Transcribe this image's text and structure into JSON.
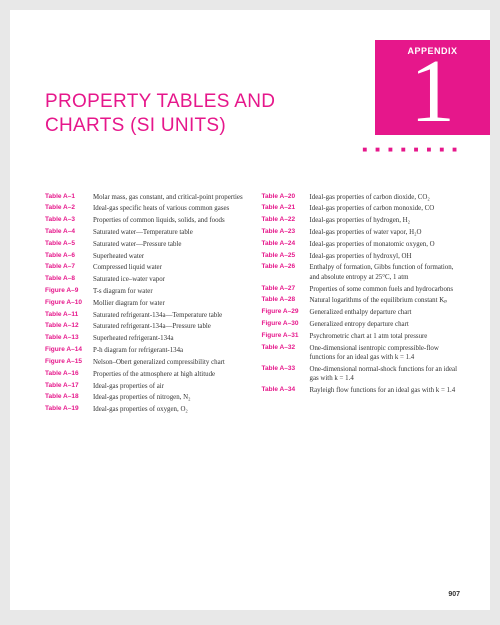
{
  "header": {
    "appendix_label": "APPENDIX",
    "appendix_number": "1",
    "dots": "■ ■ ■ ■ ■ ■ ■ ■"
  },
  "title": "PROPERTY TABLES AND CHARTS\n(SI UNITS)",
  "page_number": "907",
  "columns": [
    [
      {
        "ref": "Table A–1",
        "desc": "Molar mass, gas constant, and critical-point properties"
      },
      {
        "ref": "Table A–2",
        "desc": "Ideal-gas specific heats of various common gases"
      },
      {
        "ref": "Table A–3",
        "desc": "Properties of common liquids, solids, and foods"
      },
      {
        "ref": "Table A–4",
        "desc": "Saturated water—Temperature table"
      },
      {
        "ref": "Table A–5",
        "desc": "Saturated water—Pressure table"
      },
      {
        "ref": "Table A–6",
        "desc": "Superheated water"
      },
      {
        "ref": "Table A–7",
        "desc": "Compressed liquid water"
      },
      {
        "ref": "Table A–8",
        "desc": "Saturated ice–water vapor"
      },
      {
        "ref": "Figure A–9",
        "desc": "T-s diagram for water"
      },
      {
        "ref": "Figure A–10",
        "desc": "Mollier diagram for water"
      },
      {
        "ref": "Table A–11",
        "desc": "Saturated refrigerant-134a—Temperature table"
      },
      {
        "ref": "Table A–12",
        "desc": "Saturated refrigerant-134a—Pressure table"
      },
      {
        "ref": "Table A–13",
        "desc": "Superheated refrigerant-134a"
      },
      {
        "ref": "Figure A–14",
        "desc": "P-h diagram for refrigerant-134a"
      },
      {
        "ref": "Figure A–15",
        "desc": "Nelson–Obert generalized compressibility chart"
      },
      {
        "ref": "Table A–16",
        "desc": "Properties of the atmosphere at high altitude"
      },
      {
        "ref": "Table A–17",
        "desc": "Ideal-gas properties of air"
      },
      {
        "ref": "Table A–18",
        "desc": "Ideal-gas properties of nitrogen, N₂"
      },
      {
        "ref": "Table A–19",
        "desc": "Ideal-gas properties of oxygen, O₂"
      }
    ],
    [
      {
        "ref": "Table A–20",
        "desc": "Ideal-gas properties of carbon dioxide, CO₂"
      },
      {
        "ref": "Table A–21",
        "desc": "Ideal-gas properties of carbon monoxide, CO"
      },
      {
        "ref": "Table A–22",
        "desc": "Ideal-gas properties of hydrogen, H₂"
      },
      {
        "ref": "Table A–23",
        "desc": "Ideal-gas properties of water vapor, H₂O"
      },
      {
        "ref": "Table A–24",
        "desc": "Ideal-gas properties of monatomic oxygen, O"
      },
      {
        "ref": "Table A–25",
        "desc": "Ideal-gas properties of hydroxyl, OH"
      },
      {
        "ref": "Table A–26",
        "desc": "Enthalpy of formation, Gibbs function of formation, and absolute entropy at 25°C, 1 atm"
      },
      {
        "ref": "Table A–27",
        "desc": "Properties of some common fuels and hydrocarbons"
      },
      {
        "ref": "Table A–28",
        "desc": "Natural logarithms of the equilibrium constant Kₚ"
      },
      {
        "ref": "Figure A–29",
        "desc": "Generalized enthalpy departure chart"
      },
      {
        "ref": "Figure A–30",
        "desc": "Generalized entropy departure chart"
      },
      {
        "ref": "Figure A–31",
        "desc": "Psychrometric chart at 1 atm total pressure"
      },
      {
        "ref": "Table A–32",
        "desc": "One-dimensional isentropic compressible-flow functions for an ideal gas with k = 1.4"
      },
      {
        "ref": "Table A–33",
        "desc": "One-dimensional normal-shock functions for an ideal gas with k = 1.4"
      },
      {
        "ref": "Table A–34",
        "desc": "Rayleigh flow functions for an ideal gas with k = 1.4"
      }
    ]
  ]
}
